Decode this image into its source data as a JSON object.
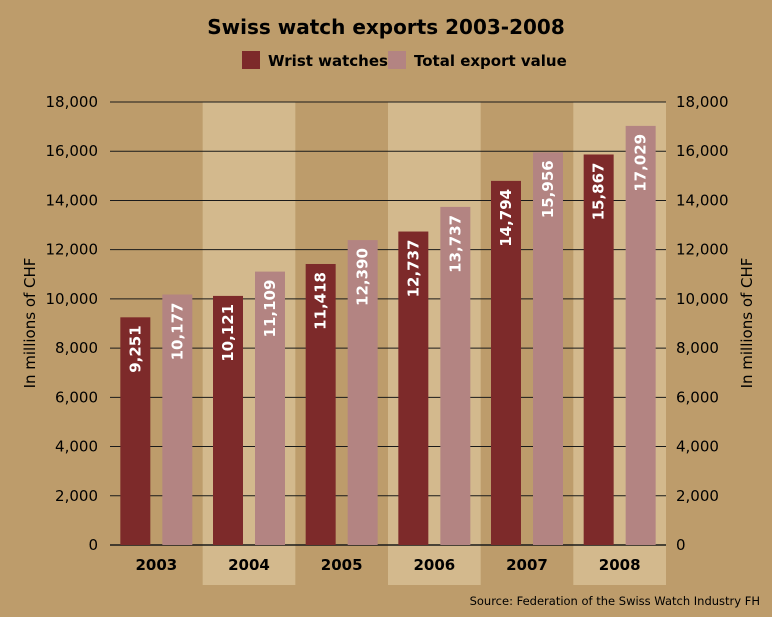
{
  "chart_data": {
    "type": "bar",
    "title": "Swiss watch exports 2003-2008",
    "categories": [
      "2003",
      "2004",
      "2005",
      "2006",
      "2007",
      "2008"
    ],
    "series": [
      {
        "name": "Wrist watches",
        "color": "#7d2a2a",
        "values": [
          9251,
          10121,
          11418,
          12737,
          14794,
          15867
        ]
      },
      {
        "name": "Total export value",
        "color": "#b38482",
        "values": [
          10177,
          11109,
          12390,
          13737,
          15956,
          17029
        ]
      }
    ],
    "value_labels": [
      [
        "9,251",
        "10,121",
        "11,418",
        "12,737",
        "14,794",
        "15,867"
      ],
      [
        "10,177",
        "11,109",
        "12,390",
        "13,737",
        "15,956",
        "17,029"
      ]
    ],
    "ylim": [
      0,
      18000
    ],
    "yticks": [
      0,
      2000,
      4000,
      6000,
      8000,
      10000,
      12000,
      14000,
      16000,
      18000
    ],
    "ytick_labels": [
      "0",
      "2,000",
      "4,000",
      "6,000",
      "8,000",
      "10,000",
      "12,000",
      "14,000",
      "16,000",
      "18,000"
    ],
    "ylabel_left": "In millions of CHF",
    "ylabel_right": "In millions of CHF",
    "legend_position": "top-center",
    "grid": true,
    "alternating_band_color": "#d3b98d",
    "source": "Source: Federation of the Swiss Watch Industry FH"
  }
}
